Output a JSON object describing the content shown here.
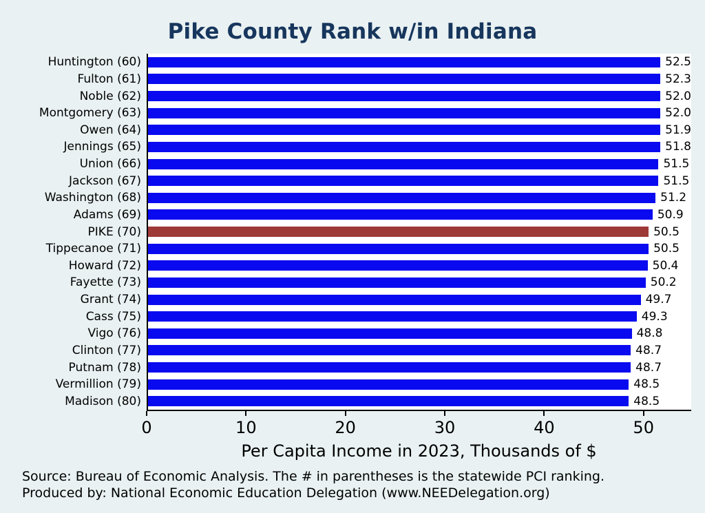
{
  "page": {
    "background": "#e9f1f2",
    "title": "Pike County Rank w/in Indiana",
    "title_color": "#17365d",
    "source_line1": "Source: Bureau of Economic Analysis. The # in parentheses is the statewide PCI ranking.",
    "source_line2": "Produced by: National Economic Education Delegation (www.NEEDelegation.org)"
  },
  "chart_data": {
    "type": "bar",
    "orientation": "horizontal",
    "title": "Pike County Rank w/in Indiana",
    "xlabel": "Per Capita Income in 2023, Thousands of $",
    "ylabel": "",
    "categories": [
      "Huntington (60)",
      "Fulton (61)",
      "Noble (62)",
      "Montgomery (63)",
      "Owen (64)",
      "Jennings (65)",
      "Union (66)",
      "Jackson (67)",
      "Washington (68)",
      "Adams (69)",
      "PIKE (70)",
      "Tippecanoe (71)",
      "Howard (72)",
      "Fayette (73)",
      "Grant (74)",
      "Cass (75)",
      "Vigo (76)",
      "Clinton (77)",
      "Putnam (78)",
      "Vermillion (79)",
      "Madison (80)"
    ],
    "values": [
      52.5,
      52.3,
      52.0,
      52.0,
      51.9,
      51.8,
      51.5,
      51.5,
      51.2,
      50.9,
      50.5,
      50.5,
      50.4,
      50.2,
      49.7,
      49.3,
      48.8,
      48.7,
      48.7,
      48.5,
      48.5
    ],
    "value_labels": [
      "52.5",
      "52.3",
      "52.0",
      "52.0",
      "51.9",
      "51.8",
      "51.5",
      "51.5",
      "51.2",
      "50.9",
      "50.5",
      "50.5",
      "50.4",
      "50.2",
      "49.7",
      "49.3",
      "48.8",
      "48.7",
      "48.7",
      "48.5",
      "48.5"
    ],
    "highlight_index": 10,
    "highlight_category": "PIKE (70)",
    "bar_color": "#0a0af0",
    "highlight_color": "#9e3a36",
    "xlim": [
      0,
      54.8
    ],
    "xticks": [
      0,
      10,
      20,
      30,
      40,
      50
    ],
    "grid": false,
    "legend": "none",
    "plot_background": "#ffffff"
  }
}
